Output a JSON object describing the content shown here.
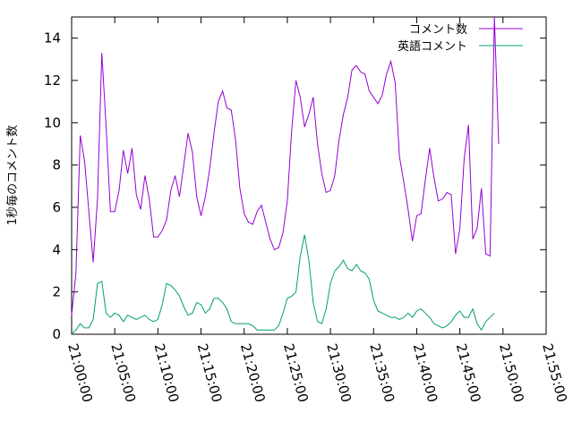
{
  "chart_data": {
    "type": "line",
    "ylabel": "1秒毎のコメント数",
    "xlabel": "",
    "ylim": [
      0,
      15
    ],
    "xlim": [
      "21:00:00",
      "21:55:00"
    ],
    "yticks": [
      0,
      2,
      4,
      6,
      8,
      10,
      12,
      14
    ],
    "xticks": [
      "21:00:00",
      "21:05:00",
      "21:10:00",
      "21:15:00",
      "21:20:00",
      "21:25:00",
      "21:30:00",
      "21:35:00",
      "21:40:00",
      "21:45:00",
      "21:50:00",
      "21:55:00"
    ],
    "legend_position": "top-right",
    "grid": false,
    "series": [
      {
        "name": "コメント数",
        "color": "#9400d3",
        "points": [
          [
            "21:00:00",
            0.9
          ],
          [
            "21:00:30",
            2.9
          ],
          [
            "21:01:00",
            9.4
          ],
          [
            "21:01:30",
            8.2
          ],
          [
            "21:02:00",
            5.8
          ],
          [
            "21:02:30",
            3.4
          ],
          [
            "21:03:00",
            6.4
          ],
          [
            "21:03:30",
            13.3
          ],
          [
            "21:04:00",
            9.8
          ],
          [
            "21:04:30",
            5.8
          ],
          [
            "21:05:00",
            5.8
          ],
          [
            "21:05:30",
            6.8
          ],
          [
            "21:06:00",
            8.7
          ],
          [
            "21:06:30",
            7.6
          ],
          [
            "21:07:00",
            8.8
          ],
          [
            "21:07:30",
            6.6
          ],
          [
            "21:08:00",
            5.9
          ],
          [
            "21:08:30",
            7.5
          ],
          [
            "21:09:00",
            6.4
          ],
          [
            "21:09:30",
            4.6
          ],
          [
            "21:10:00",
            4.6
          ],
          [
            "21:10:30",
            4.9
          ],
          [
            "21:11:00",
            5.4
          ],
          [
            "21:11:30",
            6.8
          ],
          [
            "21:12:00",
            7.5
          ],
          [
            "21:12:30",
            6.5
          ],
          [
            "21:13:00",
            8.0
          ],
          [
            "21:13:30",
            9.5
          ],
          [
            "21:14:00",
            8.6
          ],
          [
            "21:14:30",
            6.5
          ],
          [
            "21:15:00",
            5.6
          ],
          [
            "21:15:30",
            6.5
          ],
          [
            "21:16:00",
            7.8
          ],
          [
            "21:16:30",
            9.5
          ],
          [
            "21:17:00",
            11.0
          ],
          [
            "21:17:30",
            11.5
          ],
          [
            "21:18:00",
            10.7
          ],
          [
            "21:18:30",
            10.6
          ],
          [
            "21:19:00",
            9.2
          ],
          [
            "21:19:30",
            6.9
          ],
          [
            "21:20:00",
            5.7
          ],
          [
            "21:20:30",
            5.3
          ],
          [
            "21:21:00",
            5.2
          ],
          [
            "21:21:30",
            5.8
          ],
          [
            "21:22:00",
            6.1
          ],
          [
            "21:22:30",
            5.3
          ],
          [
            "21:23:00",
            4.5
          ],
          [
            "21:23:30",
            4.0
          ],
          [
            "21:24:00",
            4.1
          ],
          [
            "21:24:30",
            4.8
          ],
          [
            "21:25:00",
            6.3
          ],
          [
            "21:25:30",
            9.6
          ],
          [
            "21:26:00",
            12.0
          ],
          [
            "21:26:30",
            11.2
          ],
          [
            "21:27:00",
            9.8
          ],
          [
            "21:27:30",
            10.4
          ],
          [
            "21:28:00",
            11.2
          ],
          [
            "21:28:30",
            9.0
          ],
          [
            "21:29:00",
            7.6
          ],
          [
            "21:29:30",
            6.7
          ],
          [
            "21:30:00",
            6.8
          ],
          [
            "21:30:30",
            7.5
          ],
          [
            "21:31:00",
            9.2
          ],
          [
            "21:31:30",
            10.4
          ],
          [
            "21:32:00",
            11.2
          ],
          [
            "21:32:30",
            12.5
          ],
          [
            "21:33:00",
            12.7
          ],
          [
            "21:33:30",
            12.4
          ],
          [
            "21:34:00",
            12.3
          ],
          [
            "21:34:30",
            11.5
          ],
          [
            "21:35:00",
            11.2
          ],
          [
            "21:35:30",
            10.9
          ],
          [
            "21:36:00",
            11.3
          ],
          [
            "21:36:30",
            12.3
          ],
          [
            "21:37:00",
            12.9
          ],
          [
            "21:37:30",
            11.9
          ],
          [
            "21:38:00",
            8.4
          ],
          [
            "21:38:30",
            7.2
          ],
          [
            "21:39:00",
            5.9
          ],
          [
            "21:39:30",
            4.4
          ],
          [
            "21:40:00",
            5.6
          ],
          [
            "21:40:30",
            5.7
          ],
          [
            "21:41:00",
            7.3
          ],
          [
            "21:41:30",
            8.8
          ],
          [
            "21:42:00",
            7.4
          ],
          [
            "21:42:30",
            6.3
          ],
          [
            "21:43:00",
            6.4
          ],
          [
            "21:43:30",
            6.7
          ],
          [
            "21:44:00",
            6.6
          ],
          [
            "21:44:30",
            3.8
          ],
          [
            "21:45:00",
            5.0
          ],
          [
            "21:45:30",
            8.3
          ],
          [
            "21:46:00",
            9.9
          ],
          [
            "21:46:30",
            4.5
          ],
          [
            "21:47:00",
            5.0
          ],
          [
            "21:47:30",
            6.9
          ],
          [
            "21:48:00",
            3.8
          ],
          [
            "21:48:30",
            3.7
          ],
          [
            "21:49:00",
            15.0
          ],
          [
            "21:49:30",
            9.0
          ]
        ]
      },
      {
        "name": "英語コメント",
        "color": "#009e73",
        "points": [
          [
            "21:00:00",
            0.0
          ],
          [
            "21:00:30",
            0.2
          ],
          [
            "21:01:00",
            0.5
          ],
          [
            "21:01:30",
            0.3
          ],
          [
            "21:02:00",
            0.3
          ],
          [
            "21:02:30",
            0.7
          ],
          [
            "21:03:00",
            2.4
          ],
          [
            "21:03:30",
            2.5
          ],
          [
            "21:04:00",
            1.0
          ],
          [
            "21:04:30",
            0.8
          ],
          [
            "21:05:00",
            1.0
          ],
          [
            "21:05:30",
            0.9
          ],
          [
            "21:06:00",
            0.6
          ],
          [
            "21:06:30",
            0.9
          ],
          [
            "21:07:00",
            0.8
          ],
          [
            "21:07:30",
            0.7
          ],
          [
            "21:08:00",
            0.8
          ],
          [
            "21:08:30",
            0.9
          ],
          [
            "21:09:00",
            0.7
          ],
          [
            "21:09:30",
            0.6
          ],
          [
            "21:10:00",
            0.7
          ],
          [
            "21:10:30",
            1.4
          ],
          [
            "21:11:00",
            2.4
          ],
          [
            "21:11:30",
            2.3
          ],
          [
            "21:12:00",
            2.1
          ],
          [
            "21:12:30",
            1.8
          ],
          [
            "21:13:00",
            1.3
          ],
          [
            "21:13:30",
            0.9
          ],
          [
            "21:14:00",
            1.0
          ],
          [
            "21:14:30",
            1.5
          ],
          [
            "21:15:00",
            1.4
          ],
          [
            "21:15:30",
            1.0
          ],
          [
            "21:16:00",
            1.2
          ],
          [
            "21:16:30",
            1.7
          ],
          [
            "21:17:00",
            1.7
          ],
          [
            "21:17:30",
            1.5
          ],
          [
            "21:18:00",
            1.2
          ],
          [
            "21:18:30",
            0.6
          ],
          [
            "21:19:00",
            0.5
          ],
          [
            "21:19:30",
            0.5
          ],
          [
            "21:20:00",
            0.5
          ],
          [
            "21:20:30",
            0.5
          ],
          [
            "21:21:00",
            0.4
          ],
          [
            "21:21:30",
            0.2
          ],
          [
            "21:22:00",
            0.2
          ],
          [
            "21:22:30",
            0.2
          ],
          [
            "21:23:00",
            0.2
          ],
          [
            "21:23:30",
            0.2
          ],
          [
            "21:24:00",
            0.4
          ],
          [
            "21:24:30",
            1.0
          ],
          [
            "21:25:00",
            1.7
          ],
          [
            "21:25:30",
            1.8
          ],
          [
            "21:26:00",
            2.0
          ],
          [
            "21:26:30",
            3.7
          ],
          [
            "21:27:00",
            4.7
          ],
          [
            "21:27:30",
            3.5
          ],
          [
            "21:28:00",
            1.5
          ],
          [
            "21:28:30",
            0.6
          ],
          [
            "21:29:00",
            0.5
          ],
          [
            "21:29:30",
            1.2
          ],
          [
            "21:30:00",
            2.4
          ],
          [
            "21:30:30",
            3.0
          ],
          [
            "21:31:00",
            3.2
          ],
          [
            "21:31:30",
            3.5
          ],
          [
            "21:32:00",
            3.1
          ],
          [
            "21:32:30",
            3.0
          ],
          [
            "21:33:00",
            3.3
          ],
          [
            "21:33:30",
            3.0
          ],
          [
            "21:34:00",
            2.9
          ],
          [
            "21:34:30",
            2.6
          ],
          [
            "21:35:00",
            1.6
          ],
          [
            "21:35:30",
            1.1
          ],
          [
            "21:36:00",
            1.0
          ],
          [
            "21:36:30",
            0.9
          ],
          [
            "21:37:00",
            0.8
          ],
          [
            "21:37:30",
            0.8
          ],
          [
            "21:38:00",
            0.7
          ],
          [
            "21:38:30",
            0.8
          ],
          [
            "21:39:00",
            1.0
          ],
          [
            "21:39:30",
            0.8
          ],
          [
            "21:40:00",
            1.1
          ],
          [
            "21:40:30",
            1.2
          ],
          [
            "21:41:00",
            1.0
          ],
          [
            "21:41:30",
            0.8
          ],
          [
            "21:42:00",
            0.5
          ],
          [
            "21:42:30",
            0.4
          ],
          [
            "21:43:00",
            0.3
          ],
          [
            "21:43:30",
            0.4
          ],
          [
            "21:44:00",
            0.6
          ],
          [
            "21:44:30",
            0.9
          ],
          [
            "21:45:00",
            1.1
          ],
          [
            "21:45:30",
            0.8
          ],
          [
            "21:46:00",
            0.8
          ],
          [
            "21:46:30",
            1.2
          ],
          [
            "21:47:00",
            0.5
          ],
          [
            "21:47:30",
            0.2
          ],
          [
            "21:48:00",
            0.6
          ],
          [
            "21:48:30",
            0.8
          ],
          [
            "21:49:00",
            1.0
          ]
        ]
      }
    ]
  }
}
